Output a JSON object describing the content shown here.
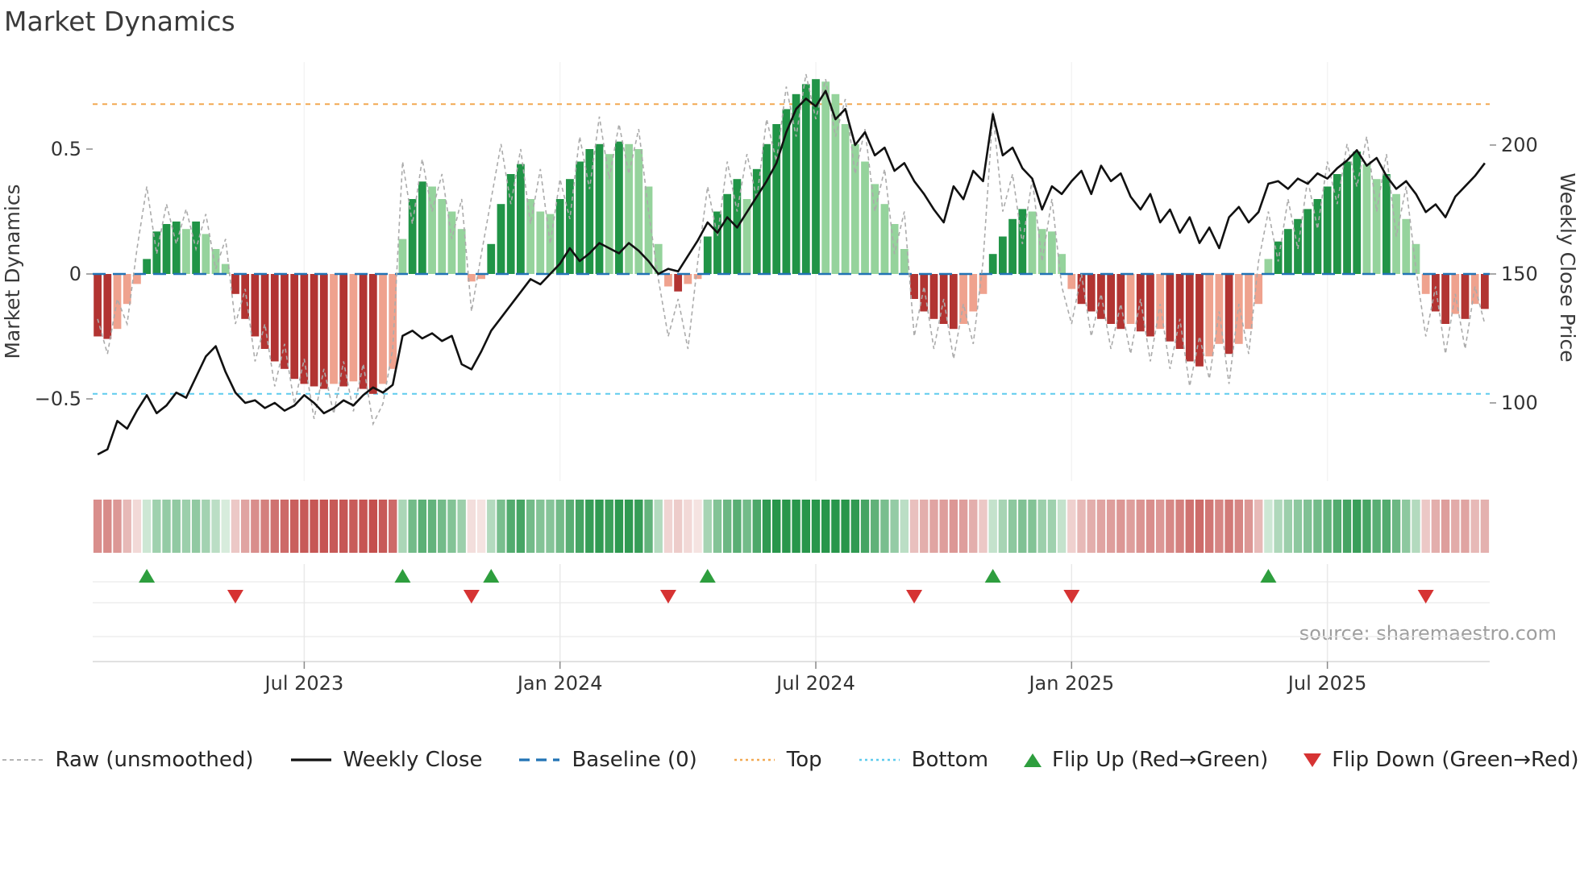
{
  "page": {
    "title": "Market Dynamics",
    "source": "source: sharemaestro.com"
  },
  "legend": {
    "items": [
      {
        "label": "Raw (unsmoothed)"
      },
      {
        "label": "Weekly Close"
      },
      {
        "label": "Baseline (0)"
      },
      {
        "label": "Top"
      },
      {
        "label": "Bottom"
      },
      {
        "label": "Flip Up (Red→Green)"
      },
      {
        "label": "Flip Down (Green→Red)"
      }
    ]
  },
  "colors": {
    "bar_green_strong": "#219447",
    "bar_green_light": "#95d39c",
    "bar_red_strong": "#b23432",
    "bar_red_light": "#efa28e",
    "raw": "#ababab",
    "close": "#111111",
    "baseline": "#2273b5",
    "top": "#f2a952",
    "bottom": "#5ecbee",
    "flip_up": "#2e9e3e",
    "flip_down": "#d63333"
  },
  "chart_data": {
    "type": "combo (bar oscillator + two lines + heatmap strip + flip markers)",
    "title": "Market Dynamics",
    "x_unit": "weekly bars, week index 0..141",
    "x_tick_weeks": [
      21,
      47,
      73,
      99,
      125
    ],
    "x_tick_labels": [
      "Jul 2023",
      "Jan 2024",
      "Jul 2024",
      "Jan 2025",
      "Jul 2025"
    ],
    "left_axis": {
      "label": "Market Dynamics",
      "ticks": [
        0.5,
        0,
        -0.5
      ],
      "tick_labels": [
        "0.5",
        "0",
        "−0.5"
      ],
      "range": [
        -0.85,
        0.85
      ]
    },
    "right_axis": {
      "label": "Weekly Close Price",
      "ticks": [
        200,
        150,
        100
      ],
      "tick_labels": [
        "200",
        "150",
        "100"
      ],
      "range": [
        75,
        230
      ]
    },
    "baseline": 0,
    "top_line": 0.68,
    "bottom_line": -0.48,
    "bars": [
      -0.25,
      -0.26,
      -0.22,
      -0.12,
      -0.04,
      0.06,
      0.17,
      0.2,
      0.21,
      0.18,
      0.21,
      0.16,
      0.1,
      0.04,
      -0.08,
      -0.18,
      -0.25,
      -0.3,
      -0.35,
      -0.38,
      -0.42,
      -0.44,
      -0.45,
      -0.46,
      -0.44,
      -0.45,
      -0.43,
      -0.46,
      -0.48,
      -0.44,
      -0.38,
      0.14,
      0.3,
      0.37,
      0.35,
      0.3,
      0.25,
      0.18,
      -0.03,
      -0.02,
      0.12,
      0.28,
      0.4,
      0.44,
      0.3,
      0.25,
      0.24,
      0.3,
      0.38,
      0.45,
      0.5,
      0.52,
      0.48,
      0.53,
      0.52,
      0.5,
      0.35,
      0.12,
      -0.05,
      -0.07,
      -0.04,
      -0.02,
      0.15,
      0.25,
      0.32,
      0.38,
      0.3,
      0.42,
      0.52,
      0.6,
      0.66,
      0.72,
      0.76,
      0.78,
      0.77,
      0.72,
      0.6,
      0.52,
      0.45,
      0.36,
      0.28,
      0.2,
      0.1,
      -0.1,
      -0.15,
      -0.18,
      -0.2,
      -0.22,
      -0.2,
      -0.15,
      -0.08,
      0.08,
      0.15,
      0.22,
      0.26,
      0.25,
      0.18,
      0.17,
      0.08,
      -0.06,
      -0.12,
      -0.15,
      -0.18,
      -0.2,
      -0.22,
      -0.2,
      -0.23,
      -0.25,
      -0.22,
      -0.27,
      -0.3,
      -0.35,
      -0.37,
      -0.33,
      -0.28,
      -0.32,
      -0.28,
      -0.22,
      -0.12,
      0.06,
      0.13,
      0.18,
      0.22,
      0.26,
      0.3,
      0.35,
      0.4,
      0.45,
      0.49,
      0.44,
      0.38,
      0.4,
      0.32,
      0.22,
      0.12,
      -0.08,
      -0.15,
      -0.2,
      -0.16,
      -0.18,
      -0.12,
      -0.14
    ],
    "raw": [
      -0.18,
      -0.32,
      -0.1,
      -0.2,
      0.1,
      0.35,
      0.08,
      0.28,
      0.12,
      0.26,
      0.1,
      0.24,
      0.02,
      0.14,
      -0.2,
      -0.06,
      -0.35,
      -0.2,
      -0.45,
      -0.28,
      -0.52,
      -0.34,
      -0.58,
      -0.38,
      -0.56,
      -0.35,
      -0.55,
      -0.36,
      -0.6,
      -0.52,
      -0.3,
      0.45,
      0.2,
      0.46,
      0.25,
      0.4,
      0.14,
      0.3,
      -0.15,
      0.08,
      0.3,
      0.52,
      0.28,
      0.5,
      0.2,
      0.42,
      0.12,
      0.38,
      0.22,
      0.55,
      0.34,
      0.63,
      0.38,
      0.6,
      0.4,
      0.58,
      0.25,
      -0.02,
      -0.25,
      -0.1,
      -0.3,
      0.05,
      0.35,
      0.15,
      0.45,
      0.25,
      0.48,
      0.3,
      0.62,
      0.45,
      0.75,
      0.55,
      0.8,
      0.62,
      0.78,
      0.55,
      0.7,
      0.4,
      0.58,
      0.25,
      0.42,
      0.08,
      0.25,
      -0.25,
      -0.05,
      -0.3,
      -0.1,
      -0.34,
      -0.12,
      -0.28,
      0.05,
      0.65,
      0.25,
      0.4,
      0.12,
      0.38,
      0.05,
      0.3,
      -0.05,
      -0.2,
      0.0,
      -0.25,
      -0.08,
      -0.3,
      -0.12,
      -0.32,
      -0.1,
      -0.35,
      -0.12,
      -0.38,
      -0.18,
      -0.45,
      -0.25,
      -0.42,
      -0.15,
      -0.44,
      -0.12,
      -0.32,
      0.05,
      0.25,
      0.05,
      0.3,
      0.1,
      0.38,
      0.18,
      0.45,
      0.28,
      0.52,
      0.35,
      0.55,
      0.25,
      0.48,
      0.15,
      0.35,
      0.02,
      -0.25,
      -0.05,
      -0.32,
      -0.08,
      -0.3,
      -0.05,
      -0.2
    ],
    "close": [
      80,
      82,
      93,
      90,
      97,
      103,
      96,
      99,
      104,
      102,
      110,
      118,
      122,
      112,
      104,
      100,
      101,
      98,
      100,
      97,
      99,
      103,
      100,
      96,
      98,
      101,
      99,
      103,
      106,
      104,
      107,
      126,
      128,
      125,
      127,
      124,
      126,
      115,
      113,
      120,
      128,
      133,
      138,
      143,
      148,
      146,
      150,
      154,
      160,
      155,
      158,
      162,
      160,
      158,
      162,
      159,
      155,
      150,
      152,
      151,
      157,
      163,
      170,
      166,
      172,
      168,
      174,
      180,
      186,
      193,
      205,
      214,
      218,
      215,
      221,
      210,
      214,
      200,
      205,
      196,
      199,
      190,
      193,
      186,
      181,
      175,
      170,
      184,
      179,
      190,
      186,
      212,
      196,
      199,
      191,
      187,
      175,
      184,
      181,
      186,
      190,
      181,
      192,
      186,
      189,
      180,
      175,
      181,
      170,
      175,
      166,
      172,
      162,
      168,
      160,
      172,
      176,
      170,
      174,
      185,
      186,
      183,
      187,
      185,
      189,
      187,
      191,
      194,
      198,
      192,
      195,
      188,
      183,
      186,
      181,
      174,
      177,
      172,
      180,
      184,
      188,
      193
    ],
    "flip_up_weeks": [
      5,
      31,
      40,
      62,
      91,
      119
    ],
    "flip_down_weeks": [
      14,
      38,
      58,
      83,
      99,
      135
    ]
  }
}
